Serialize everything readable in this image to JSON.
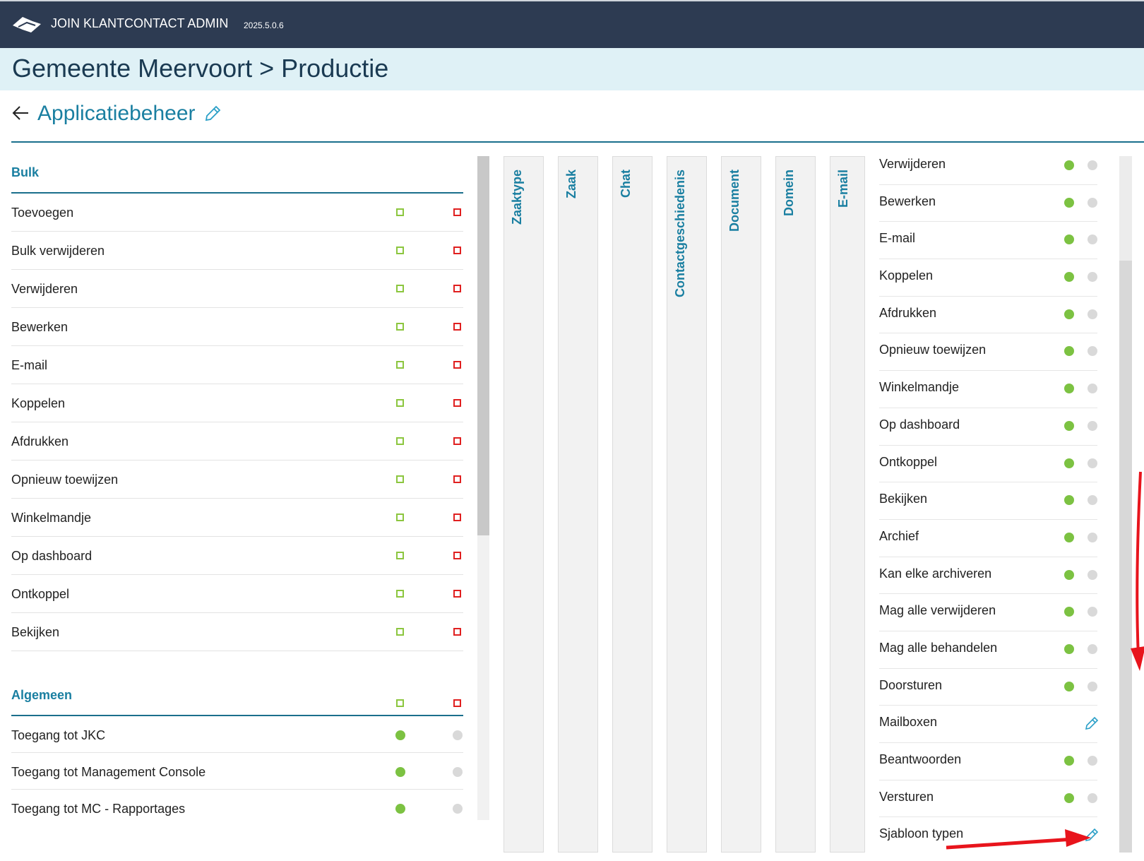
{
  "header": {
    "app_title": "JOIN KLANTCONTACT ADMIN",
    "version": "2025.5.0.6",
    "logo_icon": "join-logo-icon"
  },
  "org": {
    "title": "Gemeente Meervoort > Productie"
  },
  "page": {
    "title": "Applicatiebeheer",
    "back_icon": "arrow-left-icon",
    "edit_icon": "pencil-icon"
  },
  "left": {
    "bulk": {
      "title": "Bulk",
      "rows": [
        "Toevoegen",
        "Bulk verwijderen",
        "Verwijderen",
        "Bewerken",
        "E-mail",
        "Koppelen",
        "Afdrukken",
        "Opnieuw toewijzen",
        "Winkelmandje",
        "Op dashboard",
        "Ontkoppel",
        "Bekijken"
      ]
    },
    "algemeen": {
      "title": "Algemeen",
      "rows": [
        "Toegang tot JKC",
        "Toegang tot Management Console",
        "Toegang tot MC - Rapportages"
      ]
    }
  },
  "tabs": [
    "Zaaktype",
    "Zaak",
    "Chat",
    "Contactgeschiedenis",
    "Document",
    "Domein",
    "E-mail"
  ],
  "right": {
    "rows": [
      {
        "label": "Verwijderen",
        "control": "toggle"
      },
      {
        "label": "Bewerken",
        "control": "toggle"
      },
      {
        "label": "E-mail",
        "control": "toggle"
      },
      {
        "label": "Koppelen",
        "control": "toggle"
      },
      {
        "label": "Afdrukken",
        "control": "toggle"
      },
      {
        "label": "Opnieuw toewijzen",
        "control": "toggle"
      },
      {
        "label": "Winkelmandje",
        "control": "toggle"
      },
      {
        "label": "Op dashboard",
        "control": "toggle"
      },
      {
        "label": "Ontkoppel",
        "control": "toggle"
      },
      {
        "label": "Bekijken",
        "control": "toggle"
      },
      {
        "label": "Archief",
        "control": "toggle"
      },
      {
        "label": "Kan elke archiveren",
        "control": "toggle"
      },
      {
        "label": "Mag alle verwijderen",
        "control": "toggle"
      },
      {
        "label": "Mag alle behandelen",
        "control": "toggle"
      },
      {
        "label": "Doorsturen",
        "control": "toggle"
      },
      {
        "label": "Mailboxen",
        "control": "edit"
      },
      {
        "label": "Beantwoorden",
        "control": "toggle"
      },
      {
        "label": "Versturen",
        "control": "toggle"
      },
      {
        "label": "Sjabloon typen",
        "control": "edit"
      }
    ]
  },
  "colors": {
    "topbar": "#2d3b52",
    "orgbar": "#dff1f6",
    "accent": "#1a7fa1",
    "allow": "#8cc63f",
    "deny": "#e02020",
    "on": "#7cc242",
    "off": "#d9d9d9",
    "annotation_arrow": "#e8141c"
  }
}
